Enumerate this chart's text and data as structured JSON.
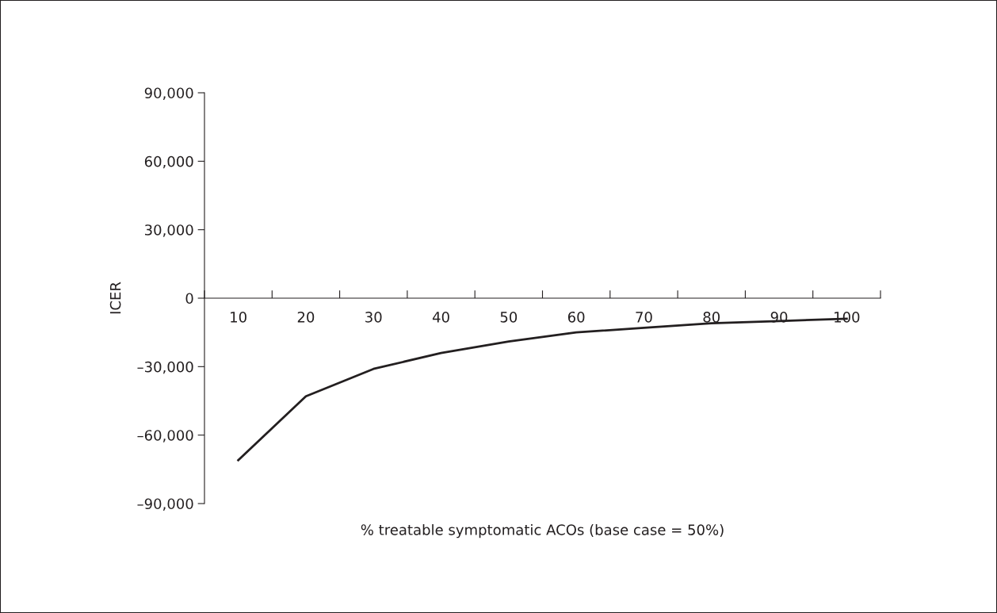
{
  "chart_data": {
    "type": "line",
    "xlabel": "% treatable symptomatic ACOs (base case = 50%)",
    "ylabel": "ICER",
    "categories": [
      "10",
      "20",
      "30",
      "40",
      "50",
      "60",
      "70",
      "80",
      "90",
      "100"
    ],
    "series": [
      {
        "color": "#231f20",
        "values": [
          -71000,
          -43000,
          -31000,
          -24000,
          -19000,
          -15000,
          -13000,
          -11000,
          -10000,
          -9000
        ]
      }
    ],
    "ylim": [
      -90000,
      90000
    ],
    "yticks": [
      {
        "value": -90000,
        "label": "–90,000"
      },
      {
        "value": -60000,
        "label": "–60,000"
      },
      {
        "value": -30000,
        "label": "–30,000"
      },
      0,
      {
        "value": 30000,
        "label": "30,000"
      },
      {
        "value": 60000,
        "label": "60,000"
      },
      {
        "value": 90000,
        "label": "90,000"
      }
    ],
    "grid": false,
    "legend": false,
    "marker": "none",
    "line_style": "solid"
  }
}
